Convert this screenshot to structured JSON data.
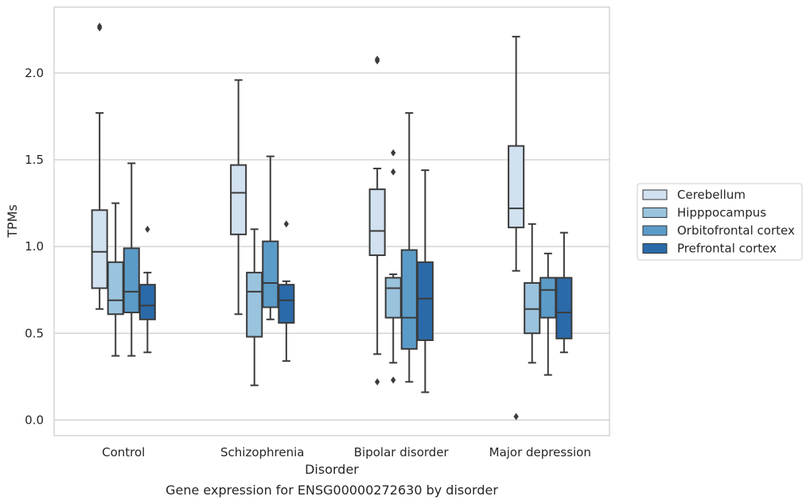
{
  "chart_data": {
    "type": "box",
    "title": "Gene expression for ENSG00000272630 by disorder",
    "xlabel": "Disorder",
    "ylabel": "TPMs",
    "ylim": [
      -0.09,
      2.38
    ],
    "yticks": [
      "0.0",
      "0.5",
      "1.0",
      "1.5",
      "2.0"
    ],
    "grid": "horizontal",
    "legend_position": "right",
    "categories": [
      "Control",
      "Schizophrenia",
      "Bipolar disorder",
      "Major depression"
    ],
    "series": [
      {
        "name": "Cerebellum",
        "color": "#d2e1f0",
        "boxes": [
          {
            "whisker_low": 0.64,
            "q1": 0.76,
            "median": 0.97,
            "q3": 1.21,
            "whisker_high": 1.77,
            "outliers": [
              2.26,
              2.27
            ]
          },
          {
            "whisker_low": 0.61,
            "q1": 1.07,
            "median": 1.31,
            "q3": 1.47,
            "whisker_high": 1.96,
            "outliers": []
          },
          {
            "whisker_low": 0.38,
            "q1": 0.95,
            "median": 1.09,
            "q3": 1.33,
            "whisker_high": 1.45,
            "outliers": [
              0.22,
              2.07,
              2.08
            ]
          },
          {
            "whisker_low": 0.86,
            "q1": 1.11,
            "median": 1.22,
            "q3": 1.58,
            "whisker_high": 2.21,
            "outliers": [
              0.02
            ]
          }
        ]
      },
      {
        "name": "Hipppocampus",
        "color": "#9ac3dd",
        "boxes": [
          {
            "whisker_low": 0.37,
            "q1": 0.61,
            "median": 0.69,
            "q3": 0.91,
            "whisker_high": 1.25,
            "outliers": []
          },
          {
            "whisker_low": 0.2,
            "q1": 0.48,
            "median": 0.74,
            "q3": 0.85,
            "whisker_high": 1.1,
            "outliers": []
          },
          {
            "whisker_low": 0.33,
            "q1": 0.59,
            "median": 0.76,
            "q3": 0.82,
            "whisker_high": 0.84,
            "outliers": [
              0.23,
              1.43,
              1.54
            ]
          },
          {
            "whisker_low": 0.33,
            "q1": 0.5,
            "median": 0.64,
            "q3": 0.79,
            "whisker_high": 1.13,
            "outliers": []
          }
        ]
      },
      {
        "name": "Orbitofrontal cortex",
        "color": "#5b9bc8",
        "boxes": [
          {
            "whisker_low": 0.37,
            "q1": 0.62,
            "median": 0.74,
            "q3": 0.99,
            "whisker_high": 1.48,
            "outliers": []
          },
          {
            "whisker_low": 0.58,
            "q1": 0.65,
            "median": 0.79,
            "q3": 1.03,
            "whisker_high": 1.52,
            "outliers": []
          },
          {
            "whisker_low": 0.22,
            "q1": 0.41,
            "median": 0.59,
            "q3": 0.98,
            "whisker_high": 1.77,
            "outliers": []
          },
          {
            "whisker_low": 0.26,
            "q1": 0.59,
            "median": 0.75,
            "q3": 0.82,
            "whisker_high": 0.96,
            "outliers": []
          }
        ]
      },
      {
        "name": "Prefrontal cortex",
        "color": "#2b6aa9",
        "boxes": [
          {
            "whisker_low": 0.39,
            "q1": 0.58,
            "median": 0.66,
            "q3": 0.78,
            "whisker_high": 0.85,
            "outliers": [
              1.1
            ]
          },
          {
            "whisker_low": 0.34,
            "q1": 0.56,
            "median": 0.69,
            "q3": 0.78,
            "whisker_high": 0.8,
            "outliers": [
              1.13
            ]
          },
          {
            "whisker_low": 0.16,
            "q1": 0.46,
            "median": 0.7,
            "q3": 0.91,
            "whisker_high": 1.44,
            "outliers": []
          },
          {
            "whisker_low": 0.39,
            "q1": 0.47,
            "median": 0.62,
            "q3": 0.82,
            "whisker_high": 1.08,
            "outliers": []
          }
        ]
      }
    ]
  },
  "colors": {
    "grid": "#cccccc",
    "frame": "#cccccc",
    "stroke": "#3b3b3b",
    "text": "#262626",
    "background": "#ffffff"
  }
}
